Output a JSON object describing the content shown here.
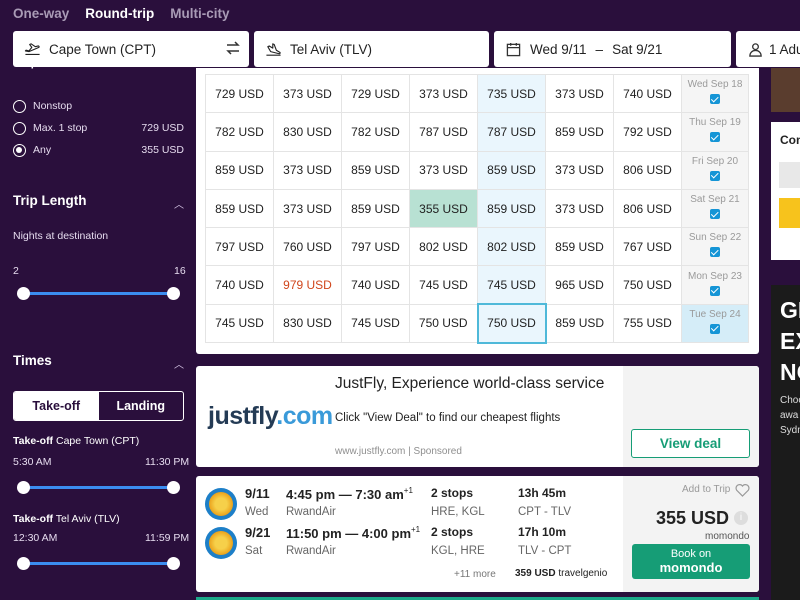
{
  "trip_types": [
    "One-way",
    "Round-trip",
    "Multi-city"
  ],
  "search": {
    "origin": "Cape Town (CPT)",
    "destination": "Tel Aviv (TLV)",
    "date_from": "Wed 9/11",
    "date_sep": "–",
    "date_to": "Sat 9/21",
    "travelers": "1 Adult"
  },
  "sidebar": {
    "stops_heading": "Stops",
    "stops": [
      {
        "label": "Nonstop",
        "price": ""
      },
      {
        "label": "Max. 1 stop",
        "price": "729 USD"
      },
      {
        "label": "Any",
        "price": "355 USD"
      }
    ],
    "trip_length": {
      "title": "Trip Length",
      "sub": "Nights at destination",
      "min": "2",
      "max": "16"
    },
    "times": {
      "title": "Times",
      "tabs": [
        "Take-off",
        "Landing"
      ],
      "out_label_b": "Take-off",
      "out_label": "Cape Town (CPT)",
      "out_min": "5:30 AM",
      "out_max": "11:30 PM",
      "ret_label_b": "Take-off",
      "ret_label": "Tel Aviv (TLV)",
      "ret_min": "12:30 AM",
      "ret_max": "11:59 PM"
    }
  },
  "matrix": {
    "rows": [
      {
        "cells": [
          "729 USD",
          "373 USD",
          "729 USD",
          "373 USD",
          "735 USD",
          "373 USD",
          "740 USD"
        ],
        "day": "Wed Sep 18"
      },
      {
        "cells": [
          "782 USD",
          "830 USD",
          "782 USD",
          "787 USD",
          "787 USD",
          "859 USD",
          "792 USD"
        ],
        "day": "Thu Sep 19"
      },
      {
        "cells": [
          "859 USD",
          "373 USD",
          "859 USD",
          "373 USD",
          "859 USD",
          "373 USD",
          "806 USD"
        ],
        "day": "Fri Sep 20"
      },
      {
        "cells": [
          "859 USD",
          "373 USD",
          "859 USD",
          "355 USD",
          "859 USD",
          "373 USD",
          "806 USD"
        ],
        "day": "Sat Sep 21"
      },
      {
        "cells": [
          "797 USD",
          "760 USD",
          "797 USD",
          "802 USD",
          "802 USD",
          "859 USD",
          "767 USD"
        ],
        "day": "Sun Sep 22"
      },
      {
        "cells": [
          "740 USD",
          "979 USD",
          "740 USD",
          "745 USD",
          "745 USD",
          "965 USD",
          "750 USD"
        ],
        "day": "Mon Sep 23"
      },
      {
        "cells": [
          "745 USD",
          "830 USD",
          "745 USD",
          "750 USD",
          "750 USD",
          "859 USD",
          "755 USD"
        ],
        "day": "Tue Sep 24"
      }
    ]
  },
  "ad": {
    "logo_a": "justfly",
    "logo_b": ".com",
    "title": "JustFly, Experience world-class service",
    "desc": "Click \"View Deal\" to find our cheapest flights",
    "source": "www.justfly.com",
    "sponsored": "Sponsored",
    "button": "View deal"
  },
  "flight": {
    "out": {
      "date": "9/11",
      "dow": "Wed",
      "times": "4:45 pm — 7:30 am",
      "plus": "+1",
      "airline": "RwandAir",
      "stops": "2 stops",
      "via": "HRE, KGL",
      "duration": "13h 45m",
      "route": "CPT - TLV"
    },
    "ret": {
      "date": "9/21",
      "dow": "Sat",
      "times": "11:50 pm — 4:00 pm",
      "plus": "+1",
      "airline": "RwandAir",
      "stops": "2 stops",
      "via": "KGL, HRE",
      "duration": "17h 10m",
      "route": "TLV - CPT"
    },
    "more": "+11 more",
    "alt_price": "359 USD",
    "alt_provider": "travelgenio",
    "add_trip": "Add to Trip",
    "price": "355 USD",
    "provider": "momondo",
    "book_line1": "Book on",
    "book_line2": "momondo"
  },
  "rail": {
    "box_title": "Com",
    "ad_big": "GE\nEX\nNO",
    "ad_small": "Choo\nawa\nSydn"
  }
}
